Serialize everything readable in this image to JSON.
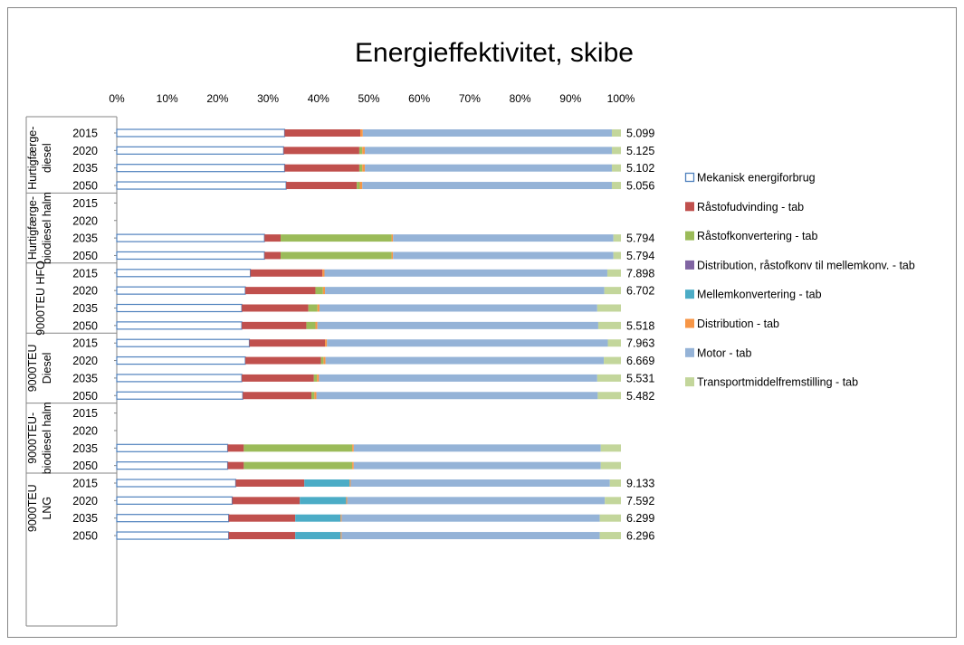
{
  "chart_data": {
    "type": "bar",
    "orientation": "horizontal",
    "stacked": "percent",
    "title": "Energieffektivitet, skibe",
    "xlim": [
      0,
      100
    ],
    "x_ticks": [
      "0%",
      "10%",
      "20%",
      "30%",
      "40%",
      "50%",
      "60%",
      "70%",
      "80%",
      "90%",
      "100%"
    ],
    "grid": false,
    "legend_position": "right",
    "series": [
      {
        "name": "Mekanisk energiforbrug",
        "color": "#ffffff",
        "stroke": "#4f81bd"
      },
      {
        "name": "Råstofudvinding - tab",
        "color": "#c0504d"
      },
      {
        "name": "Råstofkonvertering - tab",
        "color": "#9bbb59"
      },
      {
        "name": "Distribution, råstofkonv  til mellemkonv. - tab",
        "color": "#8064a2"
      },
      {
        "name": "Mellemkonvertering - tab",
        "color": "#4bacc6"
      },
      {
        "name": "Distribution - tab",
        "color": "#f79646"
      },
      {
        "name": "Motor - tab",
        "color": "#95b3d7"
      },
      {
        "name": "Transportmiddelfremstilling - tab",
        "color": "#c3d69b"
      }
    ],
    "groups": [
      {
        "label": [
          "Hurtigfærge-",
          "diesel"
        ],
        "rows": [
          {
            "year": "2015",
            "label": "5.099",
            "values": [
              33.3,
              15.0,
              0,
              0,
              0,
              0.5,
              49.4,
              1.8
            ]
          },
          {
            "year": "2020",
            "label": "5.125",
            "values": [
              33.1,
              15.0,
              0.6,
              0,
              0,
              0.5,
              49.0,
              1.8
            ]
          },
          {
            "year": "2035",
            "label": "5.102",
            "values": [
              33.3,
              14.8,
              0.6,
              0,
              0,
              0.5,
              49.0,
              1.8
            ]
          },
          {
            "year": "2050",
            "label": "5.056",
            "values": [
              33.6,
              14.0,
              0.6,
              0,
              0,
              0.5,
              49.5,
              1.8
            ]
          }
        ]
      },
      {
        "label": [
          "Hurtigfærge-",
          "biodiesel halm"
        ],
        "rows": [
          {
            "year": "2015",
            "label": "",
            "values": [
              0,
              0,
              0,
              0,
              0,
              0,
              0,
              0
            ]
          },
          {
            "year": "2020",
            "label": "",
            "values": [
              0,
              0,
              0,
              0,
              0,
              0,
              0,
              0
            ]
          },
          {
            "year": "2035",
            "label": "5.794",
            "values": [
              29.3,
              3.2,
              22.0,
              0,
              0,
              0.3,
              43.7,
              1.5
            ]
          },
          {
            "year": "2050",
            "label": "5.794",
            "values": [
              29.3,
              3.2,
              22.0,
              0,
              0,
              0.3,
              43.7,
              1.5
            ]
          }
        ]
      },
      {
        "label": [
          "9000TEU HFO"
        ],
        "rows": [
          {
            "year": "2015",
            "label": "7.898",
            "values": [
              26.5,
              14.3,
              0,
              0,
              0,
              0.4,
              56.1,
              2.7
            ]
          },
          {
            "year": "2020",
            "label": "6.702",
            "values": [
              25.5,
              13.9,
              1.5,
              0,
              0,
              0.4,
              55.4,
              3.3
            ]
          },
          {
            "year": "2035",
            "label": "",
            "values": [
              24.8,
              13.2,
              1.8,
              0,
              0,
              0.4,
              55.1,
              4.7
            ]
          },
          {
            "year": "2050",
            "label": "5.518",
            "values": [
              24.8,
              12.8,
              1.8,
              0,
              0,
              0.4,
              55.7,
              4.5
            ]
          }
        ]
      },
      {
        "label": [
          "9000TEU",
          "Diesel"
        ],
        "rows": [
          {
            "year": "2015",
            "label": "7.963",
            "values": [
              26.3,
              15.0,
              0,
              0,
              0,
              0.4,
              55.7,
              2.6
            ]
          },
          {
            "year": "2020",
            "label": "6.669",
            "values": [
              25.5,
              15.0,
              0.5,
              0,
              0,
              0.4,
              55.2,
              3.4
            ]
          },
          {
            "year": "2035",
            "label": "5.531",
            "values": [
              24.8,
              14.3,
              0.6,
              0,
              0,
              0.4,
              55.2,
              4.7
            ]
          },
          {
            "year": "2050",
            "label": "5.482",
            "values": [
              25.0,
              13.6,
              0.6,
              0,
              0,
              0.4,
              55.8,
              4.6
            ]
          }
        ]
      },
      {
        "label": [
          "9000TEU-",
          "biodiesel halm"
        ],
        "rows": [
          {
            "year": "2015",
            "label": "",
            "values": [
              0,
              0,
              0,
              0,
              0,
              0,
              0,
              0
            ]
          },
          {
            "year": "2020",
            "label": "",
            "values": [
              0,
              0,
              0,
              0,
              0,
              0,
              0,
              0
            ]
          },
          {
            "year": "2035",
            "label": "",
            "values": [
              22.0,
              3.2,
              21.5,
              0,
              0,
              0.3,
              49.0,
              4.0
            ]
          },
          {
            "year": "2050",
            "label": "",
            "values": [
              22.0,
              3.2,
              21.5,
              0,
              0,
              0.3,
              49.0,
              4.0
            ]
          }
        ]
      },
      {
        "label": [
          "9000TEU",
          "LNG"
        ],
        "rows": [
          {
            "year": "2015",
            "label": "9.133",
            "values": [
              23.6,
              13.6,
              0,
              0,
              9.0,
              0.2,
              51.4,
              2.2
            ]
          },
          {
            "year": "2020",
            "label": "7.592",
            "values": [
              22.9,
              13.4,
              0,
              0,
              9.2,
              0.2,
              51.1,
              3.2
            ]
          },
          {
            "year": "2035",
            "label": "6.299",
            "values": [
              22.2,
              13.2,
              0,
              0,
              9.0,
              0.2,
              51.2,
              4.2
            ]
          },
          {
            "year": "2050",
            "label": "6.296",
            "values": [
              22.2,
              13.2,
              0,
              0,
              9.0,
              0.2,
              51.2,
              4.2
            ]
          }
        ]
      }
    ]
  }
}
